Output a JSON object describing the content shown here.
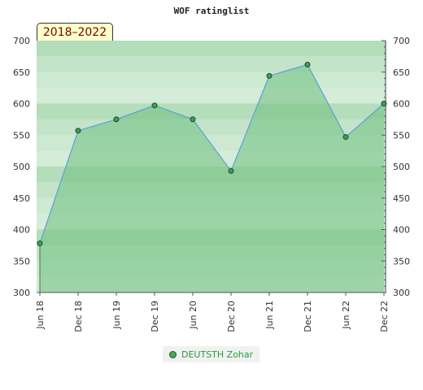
{
  "chart_data": {
    "type": "area",
    "title": "WOF ratinglist",
    "period_badge": "2018–2022",
    "categories": [
      "Jun 18",
      "Dec 18",
      "Jun 19",
      "Dec 19",
      "Jun 20",
      "Dec 20",
      "Jun 21",
      "Dec 21",
      "Jun 22",
      "Dec 22"
    ],
    "series": [
      {
        "name": "DEUTSTH Zohar",
        "values": [
          378,
          557,
          575,
          597,
          575,
          493,
          644,
          662,
          547,
          600
        ]
      }
    ],
    "ylim": [
      300,
      700
    ],
    "yticks": [
      300,
      350,
      400,
      450,
      500,
      550,
      600,
      650,
      700
    ],
    "grid": true,
    "legend_position": "bottom-center",
    "colors": {
      "area_fill": "#6fbf7f",
      "line": "#5aa0d8",
      "marker": "#3f9e55",
      "band_dark": "#b5dcbf",
      "band_light": "#e2f2e5"
    }
  }
}
